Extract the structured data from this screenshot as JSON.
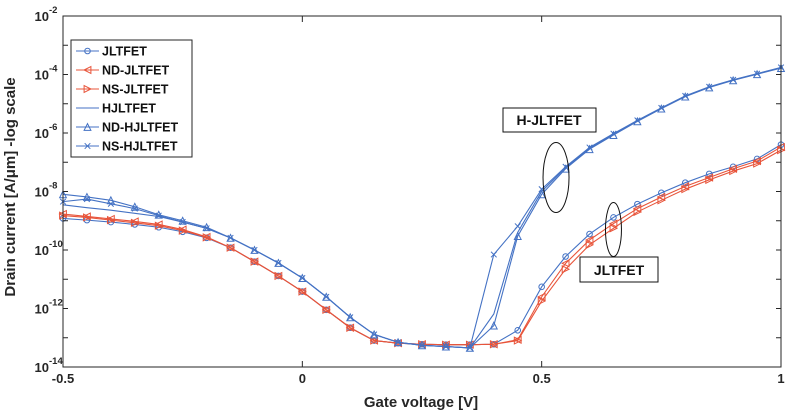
{
  "chart_data": {
    "type": "line",
    "xlabel": "Gate voltage [V]",
    "ylabel": "Drain current [A/μm] -log scale",
    "xlim": [
      -0.5,
      1
    ],
    "ylim": [
      1e-14,
      0.01
    ],
    "yscale": "log",
    "x_ticks": [
      "-0.5",
      "0",
      "0.5",
      "1"
    ],
    "y_ticks": [
      {
        "base": "10",
        "exp": "-14"
      },
      {
        "base": "10",
        "exp": "-12"
      },
      {
        "base": "10",
        "exp": "-10"
      },
      {
        "base": "10",
        "exp": "-8"
      },
      {
        "base": "10",
        "exp": "-6"
      },
      {
        "base": "10",
        "exp": "-4"
      },
      {
        "base": "10",
        "exp": "-2"
      }
    ],
    "grid": false,
    "legend_position": "top-left",
    "x": [
      -0.5,
      -0.45,
      -0.4,
      -0.35,
      -0.3,
      -0.25,
      -0.2,
      -0.15,
      -0.1,
      -0.05,
      0,
      0.05,
      0.1,
      0.15,
      0.2,
      0.25,
      0.3,
      0.35,
      0.4,
      0.45,
      0.5,
      0.55,
      0.6,
      0.65,
      0.7,
      0.75,
      0.8,
      0.85,
      0.9,
      0.95,
      1.0
    ],
    "series": [
      {
        "name": "JLTFET",
        "color": "#4472C4",
        "marker": "circle",
        "values": [
          1.2e-09,
          1.05e-09,
          9e-10,
          7.5e-10,
          6e-10,
          4.2e-10,
          2.6e-10,
          1.2e-10,
          4e-11,
          1.3e-11,
          3.8e-12,
          9e-13,
          2.2e-13,
          8e-14,
          6.5e-14,
          6e-14,
          5.8e-14,
          5.8e-14,
          6e-14,
          1.8e-13,
          5.5e-12,
          6e-11,
          3.5e-10,
          1.3e-09,
          3.7e-09,
          9e-09,
          2e-08,
          4e-08,
          7e-08,
          1.3e-07,
          4e-07
        ]
      },
      {
        "name": "ND-JLTFET",
        "color": "#E8543A",
        "marker": "triangle-left",
        "values": [
          1.7e-09,
          1.4e-09,
          1.15e-09,
          9.5e-10,
          7.5e-10,
          5e-10,
          2.8e-10,
          1.2e-10,
          4e-11,
          1.3e-11,
          3.8e-12,
          9e-13,
          2.2e-13,
          8e-14,
          6.5e-14,
          6e-14,
          5.8e-14,
          5.8e-14,
          6e-14,
          8.5e-14,
          2.5e-12,
          3.5e-11,
          2.2e-10,
          8e-10,
          2.6e-09,
          6.5e-09,
          1.5e-08,
          3e-08,
          6e-08,
          1.1e-07,
          3.3e-07
        ]
      },
      {
        "name": "NS-JLTFET",
        "color": "#E8543A",
        "marker": "triangle-right",
        "values": [
          1.5e-09,
          1.3e-09,
          1.05e-09,
          8.5e-10,
          6.8e-10,
          4.6e-10,
          2.7e-10,
          1.2e-10,
          4e-11,
          1.3e-11,
          3.8e-12,
          9e-13,
          2.2e-13,
          8e-14,
          6.5e-14,
          6e-14,
          5.8e-14,
          5.8e-14,
          6e-14,
          8e-14,
          1.8e-12,
          2.2e-11,
          1.5e-10,
          5.5e-10,
          2e-09,
          5e-09,
          1.2e-08,
          2.5e-08,
          5e-08,
          9e-08,
          2.6e-07
        ]
      },
      {
        "name": "HJLTFET",
        "color": "#4472C4",
        "marker": "none",
        "values": [
          3.5e-09,
          2.8e-09,
          2.3e-09,
          1.8e-09,
          1.4e-09,
          9e-10,
          5.5e-10,
          2.6e-10,
          1e-10,
          3.6e-11,
          1.1e-11,
          2.5e-12,
          5e-13,
          1.3e-13,
          7e-14,
          5.5e-14,
          5e-14,
          4.5e-14,
          6.5e-13,
          4e-10,
          1e-08,
          6.5e-08,
          3e-07,
          9e-07,
          2.6e-06,
          7e-06,
          1.8e-05,
          3.7e-05,
          6.5e-05,
          0.000105,
          0.00017
        ]
      },
      {
        "name": "ND-HJLTFET",
        "color": "#4472C4",
        "marker": "triangle-up",
        "values": [
          8e-09,
          6.5e-09,
          5e-09,
          3e-09,
          1.6e-09,
          1e-09,
          6e-10,
          2.6e-10,
          1e-10,
          3.6e-11,
          1.1e-11,
          2.5e-12,
          5e-13,
          1.3e-13,
          7e-14,
          5.5e-14,
          5e-14,
          4.5e-14,
          2.6e-13,
          3e-10,
          8e-09,
          6e-08,
          2.8e-07,
          8.5e-07,
          2.5e-06,
          6.8e-06,
          1.75e-05,
          3.6e-05,
          6.3e-05,
          0.000102,
          0.000165
        ]
      },
      {
        "name": "NS-HJLTFET",
        "color": "#4472C4",
        "marker": "x",
        "values": [
          4.5e-09,
          5.5e-09,
          3.8e-09,
          2.6e-09,
          1.5e-09,
          9e-10,
          5.5e-10,
          2.6e-10,
          1e-10,
          3.6e-11,
          1.1e-11,
          2.5e-12,
          5e-13,
          1.3e-13,
          7e-14,
          5.5e-14,
          5e-14,
          4.5e-14,
          7e-11,
          6.5e-10,
          1.2e-08,
          7e-08,
          3.2e-07,
          9.5e-07,
          2.7e-06,
          7.2e-06,
          1.85e-05,
          3.8e-05,
          6.6e-05,
          0.000107,
          0.000175
        ]
      }
    ],
    "annotations": [
      {
        "text": "H-JLTFET",
        "target_x": 0.53,
        "target_y": 3e-08
      },
      {
        "text": "JLTFET",
        "target_x": 0.65,
        "target_y": 5e-10
      }
    ]
  }
}
